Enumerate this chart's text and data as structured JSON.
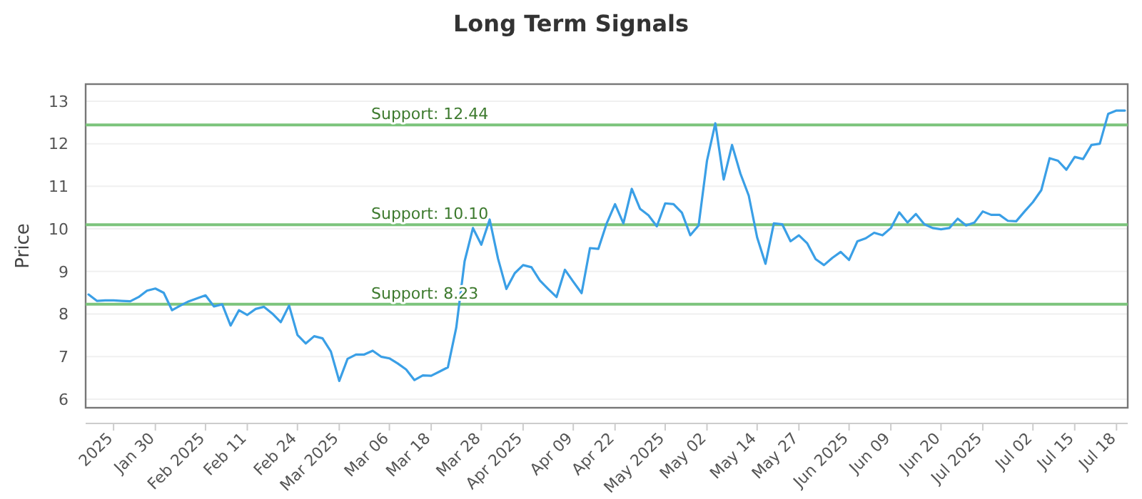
{
  "chart_data": {
    "type": "line",
    "title": "Long Term Signals",
    "ylabel": "Price",
    "categories": [
      null,
      null,
      null,
      "2025",
      null,
      null,
      null,
      null,
      "Jan 30",
      null,
      null,
      null,
      null,
      null,
      "Feb 2025",
      null,
      null,
      null,
      null,
      "Feb 11",
      null,
      null,
      null,
      null,
      null,
      "Feb 24",
      null,
      null,
      null,
      null,
      "Mar 2025",
      null,
      null,
      null,
      null,
      null,
      "Mar 06",
      null,
      null,
      null,
      null,
      "Mar 18",
      null,
      null,
      null,
      null,
      null,
      "Mar 28",
      null,
      null,
      null,
      null,
      "Apr 2025",
      null,
      null,
      null,
      null,
      null,
      "Apr 09",
      null,
      null,
      null,
      null,
      "Apr 22",
      null,
      null,
      null,
      null,
      null,
      "May 2025",
      null,
      null,
      null,
      null,
      "May 02",
      null,
      null,
      null,
      null,
      null,
      "May 14",
      null,
      null,
      null,
      null,
      "May 27",
      null,
      null,
      null,
      null,
      null,
      "Jun 2025",
      null,
      null,
      null,
      null,
      "Jun 09",
      null,
      null,
      null,
      null,
      null,
      "Jun 20",
      null,
      null,
      null,
      null,
      "Jul 2025",
      null,
      null,
      null,
      null,
      null,
      "Jul 02",
      null,
      null,
      null,
      null,
      "Jul 15",
      null,
      null,
      null,
      null,
      "Jul 18",
      null
    ],
    "series": [
      {
        "color": "#3a9fe6",
        "values": [
          8.46,
          8.31,
          8.32,
          8.32,
          8.31,
          8.3,
          8.4,
          8.55,
          8.6,
          8.5,
          8.09,
          8.2,
          8.3,
          8.37,
          8.44,
          8.18,
          8.23,
          7.73,
          8.09,
          7.98,
          8.12,
          8.17,
          8.01,
          7.81,
          8.2,
          7.51,
          7.31,
          7.48,
          7.43,
          7.12,
          6.43,
          6.95,
          7.05,
          7.05,
          7.14,
          7.0,
          6.96,
          6.84,
          6.7,
          6.45,
          6.56,
          6.55,
          6.65,
          6.75,
          7.68,
          9.24,
          10.02,
          9.63,
          10.22,
          9.3,
          8.59,
          8.96,
          9.15,
          9.1,
          8.79,
          8.59,
          8.4,
          9.04,
          8.76,
          8.49,
          9.55,
          9.53,
          10.13,
          10.58,
          10.13,
          10.94,
          10.47,
          10.32,
          10.06,
          10.6,
          10.58,
          10.38,
          9.85,
          10.08,
          11.6,
          12.48,
          11.16,
          11.97,
          11.3,
          10.78,
          9.8,
          9.18,
          10.13,
          10.11,
          9.71,
          9.85,
          9.66,
          9.29,
          9.15,
          9.32,
          9.46,
          9.27,
          9.71,
          9.78,
          9.91,
          9.85,
          10.02,
          10.39,
          10.15,
          10.35,
          10.11,
          10.02,
          9.99,
          10.02,
          10.24,
          10.08,
          10.15,
          10.41,
          10.33,
          10.33,
          10.19,
          10.18,
          10.41,
          10.63,
          10.91,
          11.66,
          11.6,
          11.39,
          11.69,
          11.64,
          11.97,
          12.0,
          12.7,
          12.78,
          12.78
        ]
      }
    ],
    "ylim": [
      5.8,
      13.4
    ],
    "yticks": [
      6,
      7,
      8,
      9,
      10,
      11,
      12,
      13
    ],
    "grid": "y",
    "marker": "none",
    "line_style": "solid",
    "ref_lines": [
      {
        "axis": "y",
        "value": 12.44,
        "label": "Support: 12.44",
        "color": "#7cc47c"
      },
      {
        "axis": "y",
        "value": 10.1,
        "label": "Support: 10.10",
        "color": "#7cc47c"
      },
      {
        "axis": "y",
        "value": 8.23,
        "label": "Support: 8.23",
        "color": "#7cc47c"
      }
    ]
  }
}
